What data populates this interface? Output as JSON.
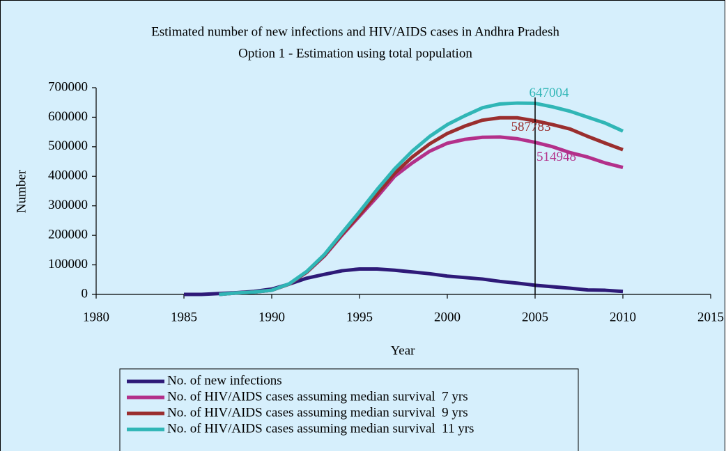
{
  "chart_data": {
    "type": "line",
    "title": "Estimated number of new infections and HIV/AIDS cases in Andhra Pradesh",
    "subtitle": "Option 1 - Estimation using total population",
    "xlabel": "Year",
    "ylabel": "Number",
    "x": [
      1985,
      1986,
      1987,
      1988,
      1989,
      1990,
      1991,
      1992,
      1993,
      1994,
      1995,
      1996,
      1997,
      1998,
      1999,
      2000,
      2001,
      2002,
      2003,
      2004,
      2005,
      2006,
      2007,
      2008,
      2009,
      2010
    ],
    "series": [
      {
        "name": "No. of new infections",
        "color": "#2e1a78",
        "values": [
          0,
          0,
          3000,
          6000,
          10000,
          18000,
          35000,
          55000,
          68000,
          80000,
          86000,
          86000,
          82000,
          76000,
          70000,
          62000,
          57000,
          52000,
          44000,
          38000,
          31000,
          26000,
          21000,
          15000,
          14000,
          10000
        ]
      },
      {
        "name": "No. of HIV/AIDS cases assuming median survival  7 yrs",
        "color": "#b3308a",
        "values": [
          null,
          null,
          0,
          5000,
          8000,
          14000,
          35000,
          75000,
          130000,
          200000,
          265000,
          330000,
          400000,
          445000,
          485000,
          512000,
          525000,
          532000,
          533000,
          527000,
          514948,
          500000,
          480000,
          465000,
          445000,
          430000
        ]
      },
      {
        "name": "No. of HIV/AIDS cases assuming median survival  9 yrs",
        "color": "#9a2e2e",
        "values": [
          null,
          null,
          0,
          5000,
          8000,
          14000,
          35000,
          76000,
          132000,
          203000,
          270000,
          340000,
          410000,
          465000,
          510000,
          545000,
          570000,
          590000,
          598000,
          598000,
          587783,
          575000,
          560000,
          535000,
          512000,
          490000
        ]
      },
      {
        "name": "No. of HIV/AIDS cases assuming median survival  11 yrs",
        "color": "#30b6b6",
        "values": [
          null,
          null,
          0,
          5000,
          8000,
          14000,
          36000,
          78000,
          135000,
          208000,
          280000,
          355000,
          425000,
          485000,
          535000,
          575000,
          605000,
          632000,
          645000,
          648000,
          647004,
          635000,
          620000,
          600000,
          580000,
          553000
        ]
      }
    ],
    "vline": 2005,
    "xlim": [
      1980,
      2015
    ],
    "xticks": [
      1980,
      1985,
      1990,
      1995,
      2000,
      2005,
      2010,
      2015
    ],
    "ylim": [
      0,
      700000
    ],
    "yticks": [
      0,
      100000,
      200000,
      300000,
      400000,
      500000,
      600000,
      700000
    ],
    "grid": false,
    "background": "#d6effc"
  }
}
